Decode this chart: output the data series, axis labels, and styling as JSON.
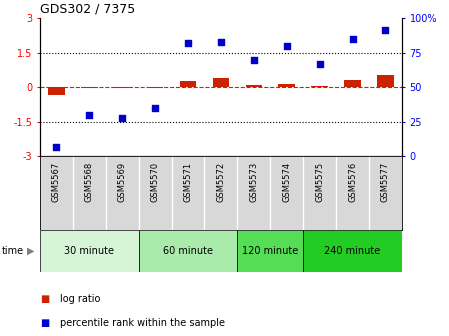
{
  "title": "GDS302 / 7375",
  "samples": [
    "GSM5567",
    "GSM5568",
    "GSM5569",
    "GSM5570",
    "GSM5571",
    "GSM5572",
    "GSM5573",
    "GSM5574",
    "GSM5575",
    "GSM5576",
    "GSM5577"
  ],
  "log_ratio": [
    -0.35,
    -0.02,
    -0.02,
    -0.03,
    0.27,
    0.42,
    0.12,
    0.13,
    0.08,
    0.3,
    0.55
  ],
  "percentile_rank": [
    7,
    30,
    28,
    35,
    82,
    83,
    70,
    80,
    67,
    85,
    92
  ],
  "groups": [
    {
      "label": "30 minute",
      "indices": [
        0,
        1,
        2
      ],
      "color": "#d6f5d6"
    },
    {
      "label": "60 minute",
      "indices": [
        3,
        4,
        5
      ],
      "color": "#aaeaaa"
    },
    {
      "label": "120 minute",
      "indices": [
        6,
        7
      ],
      "color": "#55dd55"
    },
    {
      "label": "240 minute",
      "indices": [
        8,
        9,
        10
      ],
      "color": "#22cc22"
    }
  ],
  "ylim_left": [
    -3,
    3
  ],
  "ylim_right": [
    0,
    100
  ],
  "yticks_left": [
    -3,
    -1.5,
    0,
    1.5,
    3
  ],
  "yticks_right": [
    0,
    25,
    50,
    75,
    100
  ],
  "hline_dotted": [
    -1.5,
    1.5
  ],
  "hline_dashed": 0,
  "bar_color": "#cc2200",
  "scatter_color": "#0000cc",
  "bg_gray": "#d8d8d8",
  "legend_bar_label": "log ratio",
  "legend_scatter_label": "percentile rank within the sample"
}
